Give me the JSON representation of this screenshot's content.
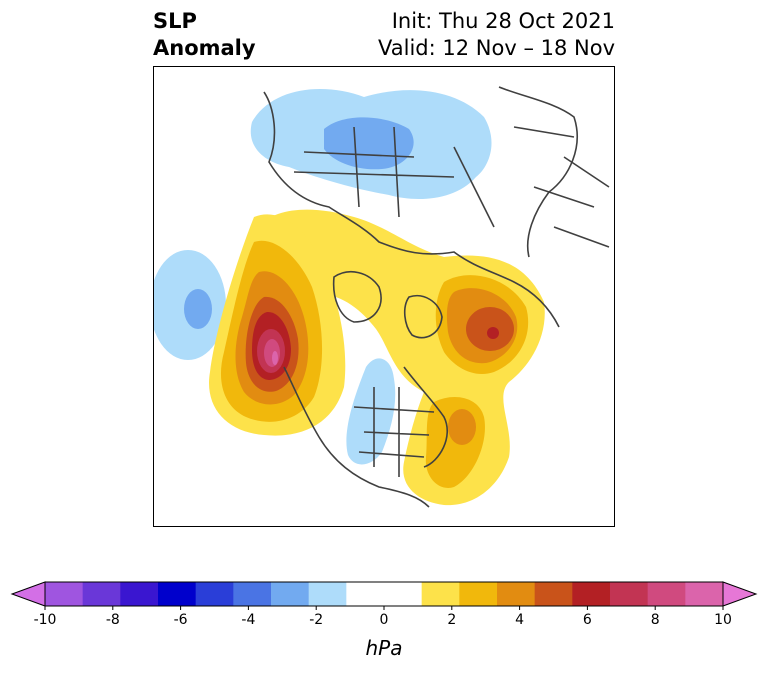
{
  "title": {
    "variable": "SLP",
    "kind": "Anomaly",
    "init": "Init: Thu 28 Oct 2021",
    "valid": "Valid: 12 Nov – 18 Nov"
  },
  "colorbar": {
    "unit": "hPa",
    "ticks": [
      "-10",
      "-8",
      "-6",
      "-4",
      "-2",
      "0",
      "2",
      "4",
      "6",
      "8",
      "10"
    ],
    "levels": [
      -10,
      -9,
      -8,
      -7,
      -6,
      -5,
      -4,
      -3,
      -2,
      -1,
      1,
      2,
      3,
      4,
      5,
      6,
      7,
      8,
      9,
      10
    ],
    "colors": [
      "#d36fe6",
      "#9f55e0",
      "#6a37d8",
      "#3a16d0",
      "#0000cc",
      "#2a3ed8",
      "#4a74e4",
      "#72aaf0",
      "#aedcfa",
      "#ffffff",
      "#ffffff",
      "#fde24a",
      "#f1b80c",
      "#e28c11",
      "#c9531a",
      "#b32024",
      "#c23453",
      "#d04a7f",
      "#db64ab",
      "#e677d6"
    ],
    "extend": "both"
  },
  "map": {
    "projection": "north-polar-stereographic",
    "features": [
      "coastlines",
      "country-borders",
      "us-state-borders"
    ]
  }
}
